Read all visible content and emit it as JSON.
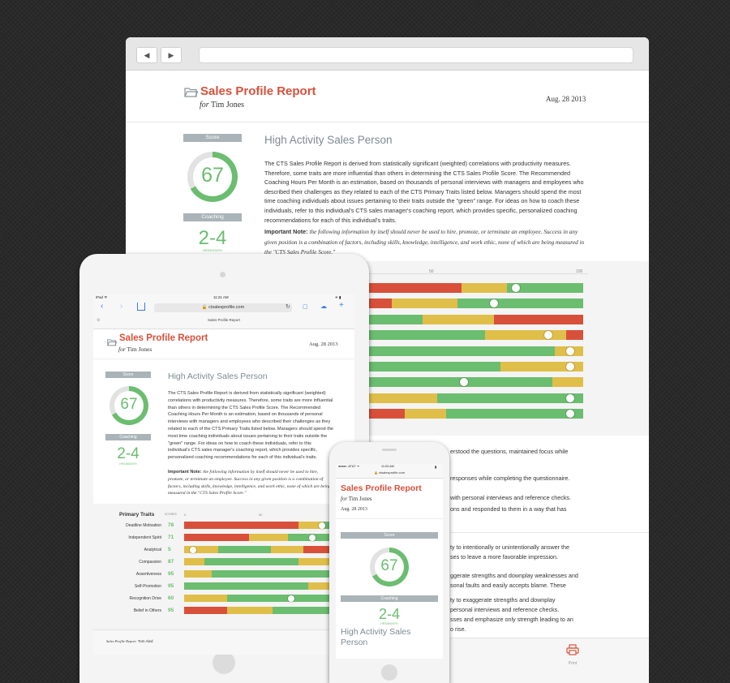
{
  "colors": {
    "red": "#d8503a",
    "yellow": "#e0be4a",
    "green": "#6bbd6f",
    "gray": "#aab3b7"
  },
  "desktop": {
    "report_title": "Sales Profile Report",
    "for_label": "for",
    "person": "Tim Jones",
    "date": "Aug. 28 2013",
    "score_label": "Score",
    "score": "67",
    "score_fraction": 0.67,
    "coaching_label": "Coaching",
    "coaching_value": "2-4",
    "coaching_unit": "HRS/MONTH",
    "heading": "High Activity Sales Person",
    "description": "The CTS Sales Profile Report is derived from statistically significant (weighted) correlations with productivity measures. Therefore, some traits are more influential than others in determining the CTS Sales Profile Score. The Recommended Coaching Hours Per Month is an estimation, based on thousands of personal interviews with managers and employees who described their challenges as they related to each of the CTS Primary Traits listed below. Managers should spend the most time coaching individuals about issues pertaining to their traits outside the \"green\" range. For ideas on how to coach these individuals, refer to this individual's CTS sales manager's coaching report, which provides specific, personalized coaching recommendations for each of this individual's traits.",
    "note_label": "Important Note:",
    "note_text": "the following information by itself should never be used to hire, promote, or terminate an employee. Success in any given position is a combination of factors, including skills, knowledge, intelligence, and work ethic, none of which are being measured in the \"CTS Sales Profile Score.\"",
    "scale_labels": [
      "50",
      "100"
    ],
    "right_text": [
      "erstood the questions, maintained focus while",
      "responses while completing the questionnaire.",
      "with personal interviews and reference checks.",
      "ons and responded to them in a way that has",
      "ty to intentionally or unintentionally answer the",
      "ses to leave a more favorable impression.",
      "ggerate strengths and downplay weaknesses and",
      "sonal faults and easily accepts blame. These",
      "ty to exaggerate strengths and downplay",
      "personal interviews and reference checks.",
      "sses and emphasize only strength leading to an",
      "o rise."
    ],
    "print_label": "Print"
  },
  "tablet": {
    "status_left": "iPad ᯤ",
    "status_time": "11:21 AM",
    "status_right": "✈ ▮",
    "url": "🔒 ctsalesprofile.com",
    "page_tab": "Sales Profile Report",
    "report_title": "Sales Profile Report",
    "for_label": "for",
    "person": "Tim Jones",
    "date": "Aug. 28 2013",
    "score_label": "Score",
    "score": "67",
    "coaching_label": "Coaching",
    "coaching_value": "2-4",
    "coaching_unit": "HRS/MONTH",
    "heading": "High Activity Sales Person",
    "description": "The CTS Sales Profile Report is derived from statistically significant (weighted) correlations with productivity measures. Therefore, some traits are more influential than others in determining the CTS Sales Profile Score. The Recommended Coaching Hours Per Month is an estimation, based on thousands of personal interviews with managers and employees who described their challenges as they related to each of the CTS Primary Traits listed below. Managers should spend the most time coaching individuals about issues pertaining to their traits outside the \"green\" range. For ideas on how to coach these individuals, refer to this individual's CTS sales manager's coaching report, which provides specific, personalized coaching recommendations for each of this individual's traits.",
    "note_label": "Important Note:",
    "note_text": "the following information by itself should never be used to hire, promote, or terminate an employee. Success in any given position is a combination of factors, including skills, knowledge, intelligence, and work ethic, none of which are being measured in the \"CTS Sales Profile Score.\"",
    "traits_title": "Primary Traits",
    "scores_label": "SCORES",
    "scale_labels": [
      "0",
      "50"
    ],
    "traits": [
      {
        "name": "Deadline Motivation",
        "score": "78"
      },
      {
        "name": "Independent Spirit",
        "score": "71"
      },
      {
        "name": "Analytical",
        "score": "5"
      },
      {
        "name": "Compassion",
        "score": "87"
      },
      {
        "name": "Assertiveness",
        "score": "95"
      },
      {
        "name": "Self-Promotion",
        "score": "95"
      },
      {
        "name": "Recognition Drive",
        "score": "60"
      },
      {
        "name": "Belief in Others",
        "score": "95"
      }
    ],
    "footer_label": "Sales Profile Report:",
    "footer_name": "Tom Aled"
  },
  "phone": {
    "status_left": "●●●●○ AT&T ᯤ",
    "status_time": "11:03 AM",
    "status_right": "▮",
    "url": "🔒 ctsalesprofile.com",
    "report_title": "Sales Profile Report",
    "for_label": "for",
    "person": "Tim Jones",
    "date": "Aug. 28 2013",
    "score_label": "Score",
    "score": "67",
    "coaching_label": "Coaching",
    "coaching_value": "2-4",
    "coaching_unit": "HRS/MONTH",
    "heading": "High Activity Sales Person"
  },
  "bars_desktop": [
    {
      "segments": [
        [
          "red",
          0.44
        ],
        [
          "yellow",
          0.21
        ],
        [
          "green",
          0.35
        ]
      ],
      "knob": 0.69
    },
    {
      "segments": [
        [
          "red",
          0.12
        ],
        [
          "yellow",
          0.3
        ],
        [
          "green",
          0.58
        ]
      ],
      "knob": 0.59
    },
    {
      "segments": [
        [
          "green",
          0.26
        ],
        [
          "yellow",
          0.33
        ],
        [
          "red",
          0.41
        ]
      ]
    },
    {
      "segments": [
        [
          "green",
          0.55
        ],
        [
          "yellow",
          0.37
        ],
        [
          "red",
          0.08
        ]
      ],
      "knob": 0.84
    },
    {
      "segments": [
        [
          "green",
          0.87
        ],
        [
          "yellow",
          0.13
        ]
      ],
      "knob": 0.94
    },
    {
      "segments": [
        [
          "green",
          0.62
        ],
        [
          "yellow",
          0.38
        ]
      ],
      "knob": 0.94
    },
    {
      "segments": [
        [
          "green",
          0.86
        ],
        [
          "yellow",
          0.14
        ]
      ],
      "knob": 0.45
    },
    {
      "segments": [
        [
          "yellow",
          0.33
        ],
        [
          "green",
          0.67
        ]
      ],
      "knob": 0.94
    },
    {
      "segments": [
        [
          "red",
          0.18
        ],
        [
          "yellow",
          0.19
        ],
        [
          "green",
          0.63
        ]
      ],
      "knob": 0.94
    }
  ],
  "bars_tablet": [
    {
      "segments": [
        [
          "red",
          0.67
        ],
        [
          "yellow",
          0.15
        ],
        [
          "green",
          0.18
        ]
      ],
      "knob": 0.81
    },
    {
      "segments": [
        [
          "red",
          0.38
        ],
        [
          "yellow",
          0.23
        ],
        [
          "green",
          0.39
        ]
      ],
      "knob": 0.75
    },
    {
      "segments": [
        [
          "yellow",
          0.2
        ],
        [
          "green",
          0.31
        ],
        [
          "yellow",
          0.19
        ],
        [
          "red",
          0.3
        ]
      ],
      "knob": 0.05
    },
    {
      "segments": [
        [
          "yellow",
          0.12
        ],
        [
          "green",
          0.55
        ],
        [
          "yellow",
          0.33
        ]
      ],
      "knob": 0.94
    },
    {
      "segments": [
        [
          "yellow",
          0.16
        ],
        [
          "green",
          0.77
        ],
        [
          "yellow",
          0.07
        ]
      ],
      "knob": 0.98
    },
    {
      "segments": [
        [
          "green",
          0.73
        ],
        [
          "yellow",
          0.27
        ]
      ],
      "knob": 0.98
    },
    {
      "segments": [
        [
          "yellow",
          0.25
        ],
        [
          "green",
          0.75
        ]
      ],
      "knob": 0.63
    },
    {
      "segments": [
        [
          "red",
          0.25
        ],
        [
          "yellow",
          0.27
        ],
        [
          "green",
          0.48
        ]
      ],
      "knob": 0.98
    }
  ]
}
